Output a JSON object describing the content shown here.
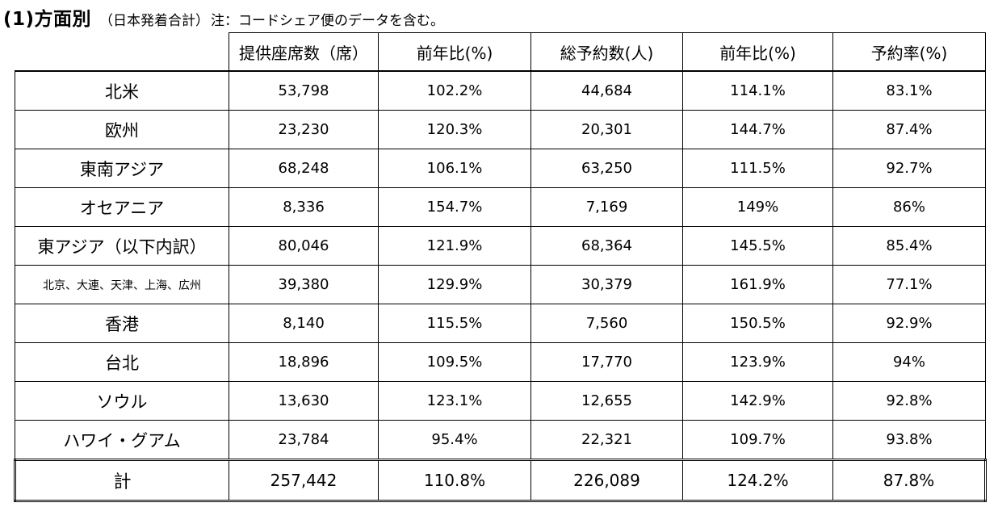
{
  "heading": {
    "main": "(1)方面別",
    "sub": "（日本発着合計）",
    "note": "注：コードシェア便のデータを含む。"
  },
  "columns": [
    "提供座席数（席）",
    "前年比(%)",
    "総予約数(人)",
    "前年比(%)",
    "予約率(%)"
  ],
  "rows": [
    {
      "region": "北米",
      "seats": "53,798",
      "seats_yoy": "102.2%",
      "bookings": "44,684",
      "bookings_yoy": "114.1%",
      "rate": "83.1%"
    },
    {
      "region": "欧州",
      "seats": "23,230",
      "seats_yoy": "120.3%",
      "bookings": "20,301",
      "bookings_yoy": "144.7%",
      "rate": "87.4%"
    },
    {
      "region": "東南アジア",
      "seats": "68,248",
      "seats_yoy": "106.1%",
      "bookings": "63,250",
      "bookings_yoy": "111.5%",
      "rate": "92.7%"
    },
    {
      "region": "オセアニア",
      "seats": "8,336",
      "seats_yoy": "154.7%",
      "bookings": "7,169",
      "bookings_yoy": "149%",
      "rate": "86%"
    },
    {
      "region": "東アジア（以下内訳）",
      "seats": "80,046",
      "seats_yoy": "121.9%",
      "bookings": "68,364",
      "bookings_yoy": "145.5%",
      "rate": "85.4%"
    },
    {
      "region": "北京、大連、天津、上海、広州",
      "seats": "39,380",
      "seats_yoy": "129.9%",
      "bookings": "30,379",
      "bookings_yoy": "161.9%",
      "rate": "77.1%"
    },
    {
      "region": "香港",
      "seats": "8,140",
      "seats_yoy": "115.5%",
      "bookings": "7,560",
      "bookings_yoy": "150.5%",
      "rate": "92.9%"
    },
    {
      "region": "台北",
      "seats": "18,896",
      "seats_yoy": "109.5%",
      "bookings": "17,770",
      "bookings_yoy": "123.9%",
      "rate": "94%"
    },
    {
      "region": "ソウル",
      "seats": "13,630",
      "seats_yoy": "123.1%",
      "bookings": "12,655",
      "bookings_yoy": "142.9%",
      "rate": "92.8%"
    },
    {
      "region": "ハワイ・グアム",
      "seats": "23,784",
      "seats_yoy": "95.4%",
      "bookings": "22,321",
      "bookings_yoy": "109.7%",
      "rate": "93.8%"
    },
    {
      "region": "計",
      "seats": "257,442",
      "seats_yoy": "110.8%",
      "bookings": "226,089",
      "bookings_yoy": "124.2%",
      "rate": "87.8%"
    }
  ]
}
